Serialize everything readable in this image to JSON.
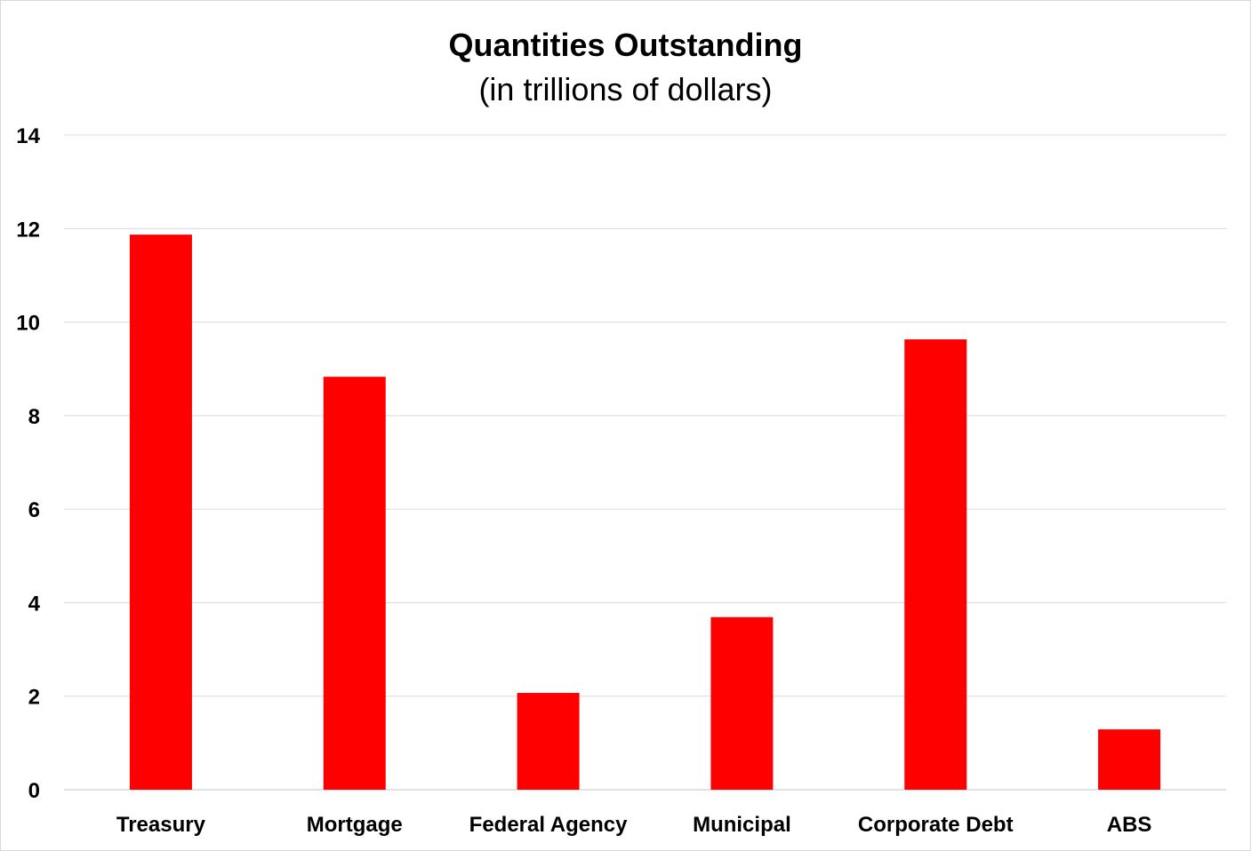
{
  "chart_data": {
    "type": "bar",
    "title": "Quantities Outstanding",
    "subtitle": "(in trillions of dollars)",
    "xlabel": "",
    "ylabel": "",
    "categories": [
      "Treasury",
      "Mortgage",
      "Federal Agency",
      "Municipal",
      "Corporate Debt",
      "ABS"
    ],
    "values": [
      11.87,
      8.83,
      2.07,
      3.69,
      9.63,
      1.29
    ],
    "ylim": [
      0,
      14
    ],
    "yticks": [
      "0",
      "2",
      "4",
      "6",
      "8",
      "10",
      "12",
      "14"
    ],
    "grid": true,
    "legend": "none",
    "colors": {
      "bar": "#ff0000",
      "grid": "#d9d9d9",
      "axis": "#d9d9d9"
    }
  }
}
